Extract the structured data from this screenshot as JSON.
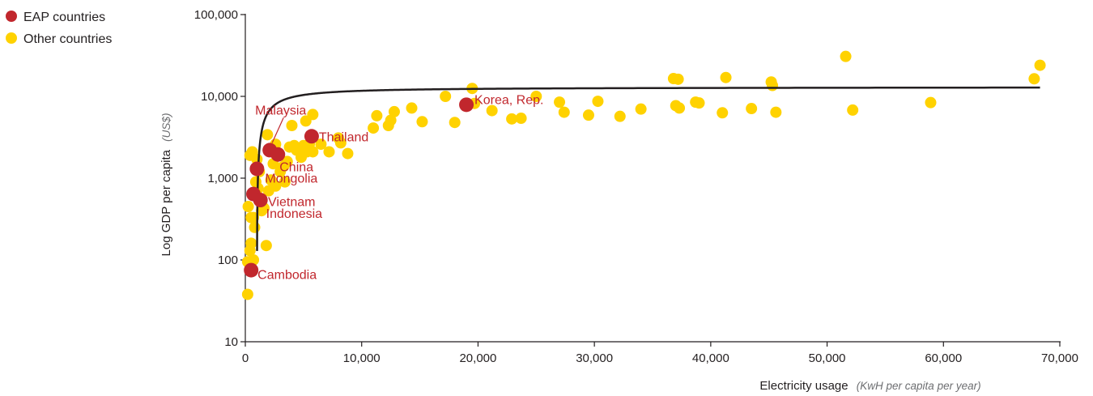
{
  "chart_data": {
    "type": "scatter",
    "xlabel": "Electricity usage",
    "xlabel_unit": "(KwH per capita per year)",
    "ylabel": "Log GDP per capita",
    "ylabel_unit": "(US$)",
    "xlim": [
      0,
      70000
    ],
    "ylim": [
      10,
      100000
    ],
    "y_scale": "log",
    "grid": false,
    "legend_position": "top-left",
    "x_ticks": [
      0,
      10000,
      20000,
      30000,
      40000,
      50000,
      60000,
      70000
    ],
    "x_tick_labels": [
      "0",
      "10,000",
      "20,000",
      "30,000",
      "40,000",
      "50,000",
      "60,000",
      "70,000"
    ],
    "y_ticks": [
      10,
      100,
      1000,
      10000,
      100000
    ],
    "y_tick_labels": [
      "10",
      "100",
      "1,000",
      "10,000",
      "100,000"
    ],
    "colors": {
      "eap": "#c1272d",
      "other": "#ffd200",
      "trend": "#231f20",
      "axis": "#231f20"
    },
    "series": [
      {
        "name": "EAP countries",
        "points": [
          {
            "label": "Malaysia",
            "x": 2100,
            "y": 2200
          },
          {
            "label": "Korea, Rep.",
            "x": 19000,
            "y": 7900
          },
          {
            "label": "Thailand",
            "x": 5700,
            "y": 3250
          },
          {
            "label": "China",
            "x": 2800,
            "y": 1950
          },
          {
            "label": "Mongolia",
            "x": 1000,
            "y": 1300
          },
          {
            "label": "Vietnam",
            "x": 700,
            "y": 640
          },
          {
            "label": "Indonesia",
            "x": 1300,
            "y": 540
          },
          {
            "label": "Cambodia",
            "x": 500,
            "y": 75
          }
        ]
      },
      {
        "name": "Other countries",
        "points": [
          [
            200,
            38
          ],
          [
            200,
            95
          ],
          [
            250,
            450
          ],
          [
            400,
            130
          ],
          [
            500,
            160
          ],
          [
            700,
            100
          ],
          [
            800,
            250
          ],
          [
            700,
            330
          ],
          [
            500,
            330
          ],
          [
            400,
            1900
          ],
          [
            600,
            2100
          ],
          [
            1000,
            1700
          ],
          [
            1200,
            1200
          ],
          [
            900,
            900
          ],
          [
            1100,
            750
          ],
          [
            1400,
            400
          ],
          [
            1600,
            430
          ],
          [
            1800,
            150
          ],
          [
            2000,
            700
          ],
          [
            2200,
            950
          ],
          [
            2400,
            1500
          ],
          [
            2600,
            800
          ],
          [
            3000,
            1200
          ],
          [
            3400,
            900
          ],
          [
            3600,
            1600
          ],
          [
            3800,
            2400
          ],
          [
            4000,
            4400
          ],
          [
            4400,
            2200
          ],
          [
            4800,
            1800
          ],
          [
            5000,
            2500
          ],
          [
            5300,
            2100
          ],
          [
            5500,
            2600
          ],
          [
            5800,
            2100
          ],
          [
            5800,
            6000
          ],
          [
            5200,
            5000
          ],
          [
            6500,
            2600
          ],
          [
            7200,
            2100
          ],
          [
            8000,
            3100
          ],
          [
            8200,
            2700
          ],
          [
            8800,
            2000
          ],
          [
            1900,
            3400
          ],
          [
            2600,
            2600
          ],
          [
            3300,
            1400
          ],
          [
            4200,
            2500
          ],
          [
            11000,
            4100
          ],
          [
            11300,
            5800
          ],
          [
            12300,
            4400
          ],
          [
            12500,
            5100
          ],
          [
            12800,
            6500
          ],
          [
            14300,
            7200
          ],
          [
            15200,
            4900
          ],
          [
            17200,
            10000
          ],
          [
            18000,
            4800
          ],
          [
            19500,
            12500
          ],
          [
            19700,
            8200
          ],
          [
            21200,
            6700
          ],
          [
            22900,
            5300
          ],
          [
            23700,
            5400
          ],
          [
            25000,
            10000
          ],
          [
            27000,
            8500
          ],
          [
            27400,
            6400
          ],
          [
            29500,
            5900
          ],
          [
            30300,
            8700
          ],
          [
            32200,
            5700
          ],
          [
            34000,
            7000
          ],
          [
            36800,
            16500
          ],
          [
            37200,
            16200
          ],
          [
            37000,
            7700
          ],
          [
            37300,
            7200
          ],
          [
            38700,
            8500
          ],
          [
            39000,
            8300
          ],
          [
            41000,
            6300
          ],
          [
            41300,
            17000
          ],
          [
            43500,
            7100
          ],
          [
            45200,
            15000
          ],
          [
            45300,
            13600
          ],
          [
            45600,
            6400
          ],
          [
            51600,
            30800
          ],
          [
            52200,
            6800
          ],
          [
            58900,
            8400
          ],
          [
            67800,
            16400
          ],
          [
            68300,
            24000
          ]
        ]
      }
    ],
    "trendline": {
      "form": "y = 13000 - 13000000/x",
      "x_range": [
        1010,
        68300
      ]
    }
  }
}
